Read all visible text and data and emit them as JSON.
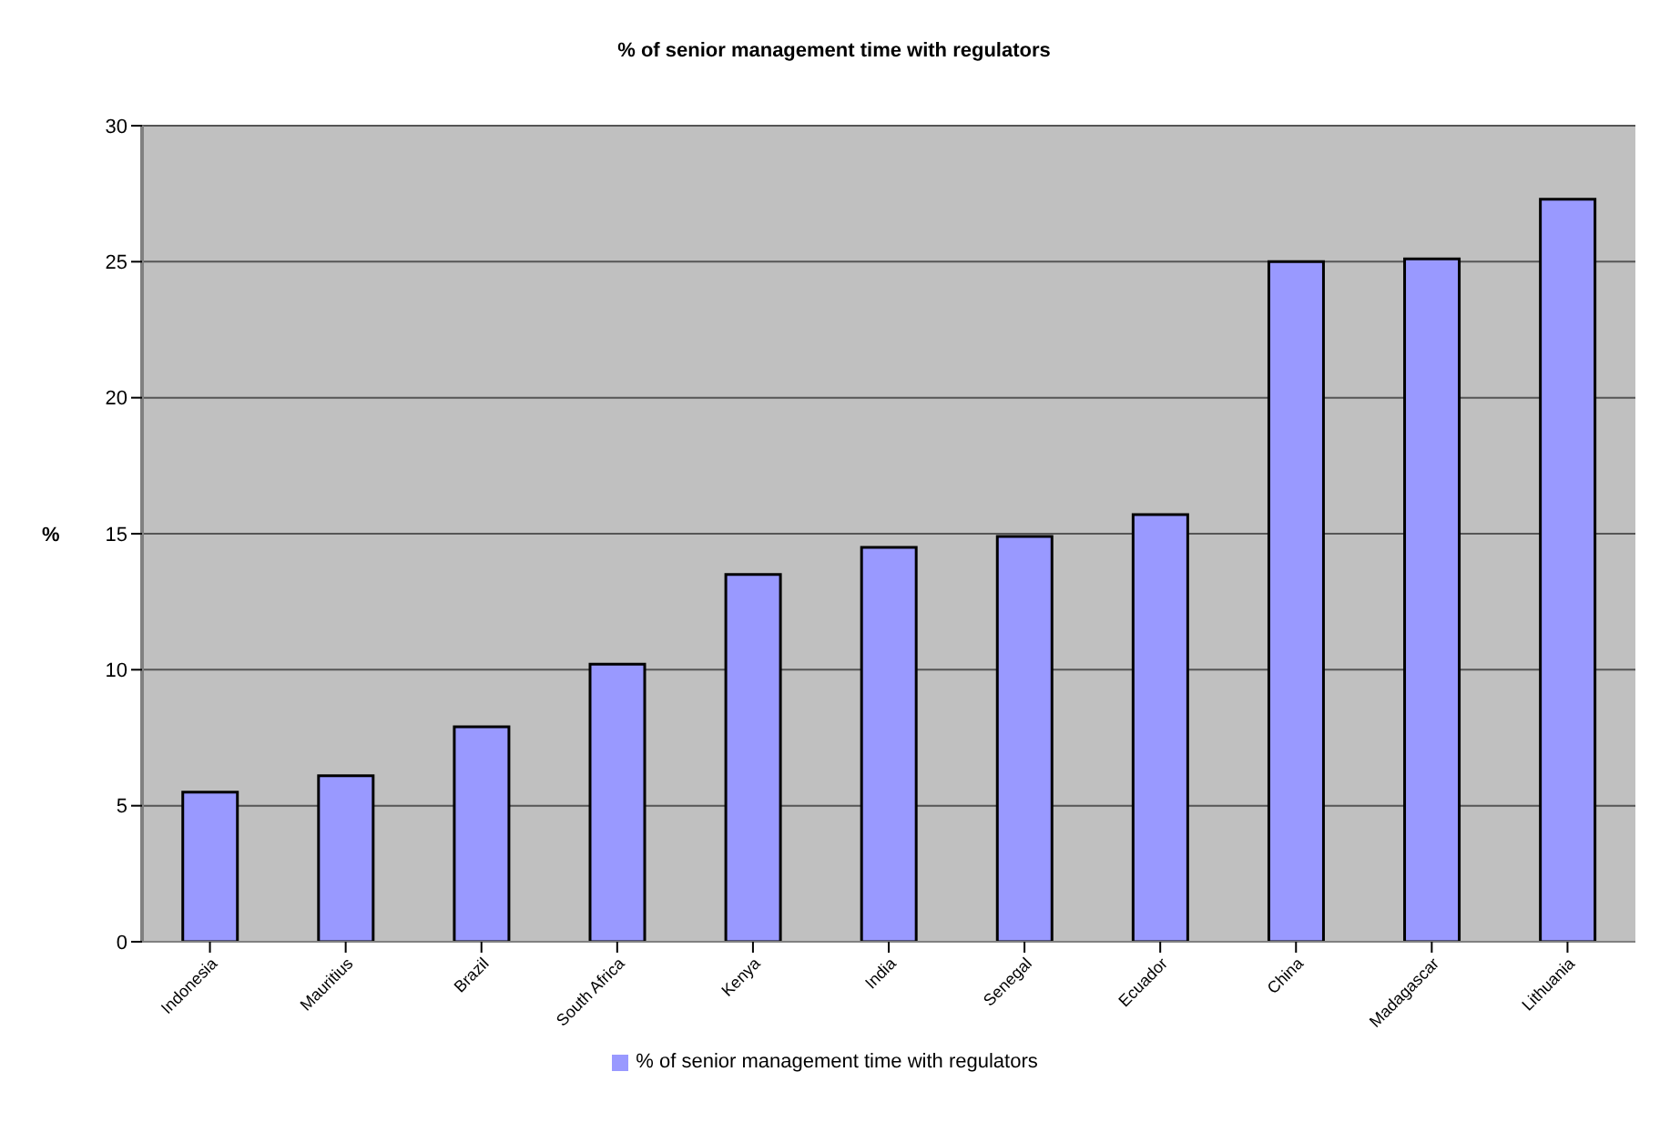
{
  "chart_data": {
    "type": "bar",
    "title": "% of senior management time with regulators",
    "ylabel": "%",
    "categories": [
      "Indonesia",
      "Mauritius",
      "Brazil",
      "South Africa",
      "Kenya",
      "India",
      "Senegal",
      "Ecuador",
      "China",
      "Madagascar",
      "Lithuania"
    ],
    "series": [
      {
        "name": "% of senior management time with regulators",
        "color": "#9999ff",
        "values": [
          5.5,
          6.1,
          7.9,
          10.2,
          13.5,
          14.5,
          14.9,
          15.7,
          25.0,
          25.1,
          27.3
        ]
      }
    ],
    "ylim": [
      0,
      30
    ],
    "yticks": [
      0,
      5,
      10,
      15,
      20,
      25,
      30
    ],
    "grid": "y",
    "legend": "bottom"
  }
}
